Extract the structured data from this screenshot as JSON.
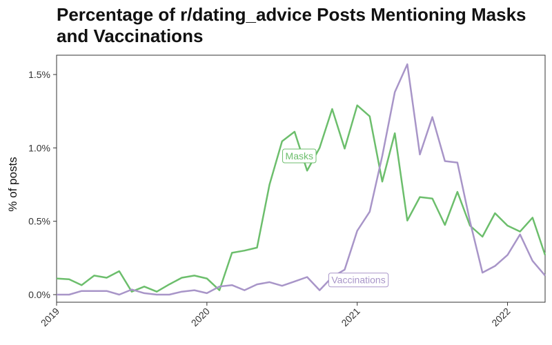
{
  "chart_data": {
    "type": "line",
    "title": "Percentage of r/dating_advice Posts Mentioning Masks and Vaccinations",
    "xlabel": "",
    "ylabel": "% of posts",
    "x_ticks": [
      "2019",
      "2020",
      "2021",
      "2022"
    ],
    "y_ticks": [
      "0.0%",
      "0.5%",
      "1.0%",
      "1.5%"
    ],
    "ylim": [
      0,
      1.5
    ],
    "xlim": [
      "2019-01",
      "2022-04"
    ],
    "grid": false,
    "legend": "direct labels on lines",
    "x": [
      "2019-01",
      "2019-02",
      "2019-03",
      "2019-04",
      "2019-05",
      "2019-06",
      "2019-07",
      "2019-08",
      "2019-09",
      "2019-10",
      "2019-11",
      "2019-12",
      "2020-01",
      "2020-02",
      "2020-03",
      "2020-04",
      "2020-05",
      "2020-06",
      "2020-07",
      "2020-08",
      "2020-09",
      "2020-10",
      "2020-11",
      "2020-12",
      "2021-01",
      "2021-02",
      "2021-03",
      "2021-04",
      "2021-05",
      "2021-06",
      "2021-07",
      "2021-08",
      "2021-09",
      "2021-10",
      "2021-11",
      "2021-12",
      "2022-01",
      "2022-02",
      "2022-03",
      "2022-04"
    ],
    "series": [
      {
        "name": "Masks",
        "color": "#6cbe6c",
        "values": [
          0.11,
          0.105,
          0.065,
          0.13,
          0.115,
          0.16,
          0.02,
          0.055,
          0.02,
          0.07,
          0.115,
          0.13,
          0.11,
          0.03,
          0.285,
          0.3,
          0.32,
          0.75,
          1.045,
          1.11,
          0.845,
          1.0,
          1.265,
          0.995,
          1.29,
          1.215,
          0.77,
          1.1,
          0.505,
          0.665,
          0.655,
          0.475,
          0.7,
          0.47,
          0.395,
          0.555,
          0.47,
          0.43,
          0.525,
          0.27
        ]
      },
      {
        "name": "Vaccinations",
        "color": "#a895c8",
        "values": [
          0.0,
          0.0,
          0.025,
          0.025,
          0.025,
          0.0,
          0.035,
          0.01,
          0.0,
          0.0,
          0.02,
          0.03,
          0.01,
          0.055,
          0.065,
          0.03,
          0.07,
          0.085,
          0.06,
          0.09,
          0.12,
          0.03,
          0.12,
          0.17,
          0.435,
          0.565,
          0.945,
          1.38,
          1.57,
          0.955,
          1.21,
          0.91,
          0.9,
          0.5,
          0.15,
          0.195,
          0.27,
          0.41,
          0.23,
          0.13
        ]
      }
    ]
  }
}
